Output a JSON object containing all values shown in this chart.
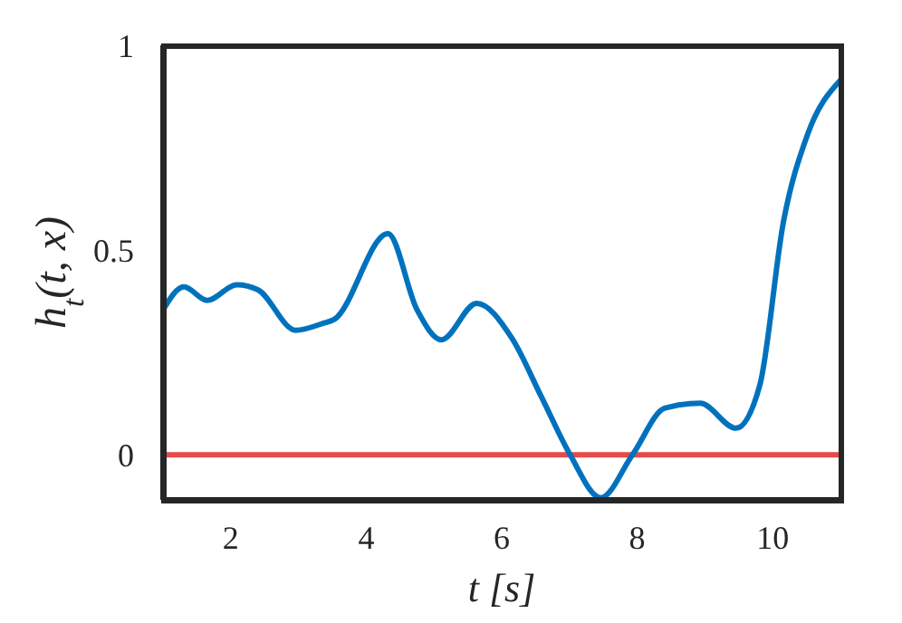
{
  "chart_data": {
    "type": "line",
    "xlabel": "t [s]",
    "ylabel": "h$_{t}$(t, x)",
    "x": [
      1,
      1.31,
      1.65,
      2.09,
      2.4,
      2.96,
      3.36,
      3.53,
      4.32,
      4.75,
      5.11,
      5.63,
      6.15,
      6.59,
      7.02,
      7.46,
      7.93,
      8.41,
      8.93,
      9.46,
      9.81,
      10.16,
      10.51,
      11
    ],
    "series": [
      {
        "color": "#0072bd",
        "values": [
          0.354,
          0.41,
          0.377,
          0.415,
          0.403,
          0.304,
          0.321,
          0.331,
          0.54,
          0.354,
          0.281,
          0.37,
          0.285,
          0.14,
          -0.003,
          -0.105,
          0,
          0.114,
          0.126,
          0.065,
          0.17,
          0.57,
          0.78,
          0.915
        ]
      }
    ],
    "xlim": [
      1,
      11
    ],
    "xticks": [
      2,
      4,
      6,
      8,
      10
    ],
    "ylim": [
      -0.11,
      1
    ],
    "yticks": [
      0,
      0.5,
      1
    ],
    "ref_lines": [
      {
        "axis": "y",
        "value": 0,
        "color": "#e64a4a"
      }
    ],
    "grid": false,
    "marker": "none",
    "line_style": "solid"
  }
}
